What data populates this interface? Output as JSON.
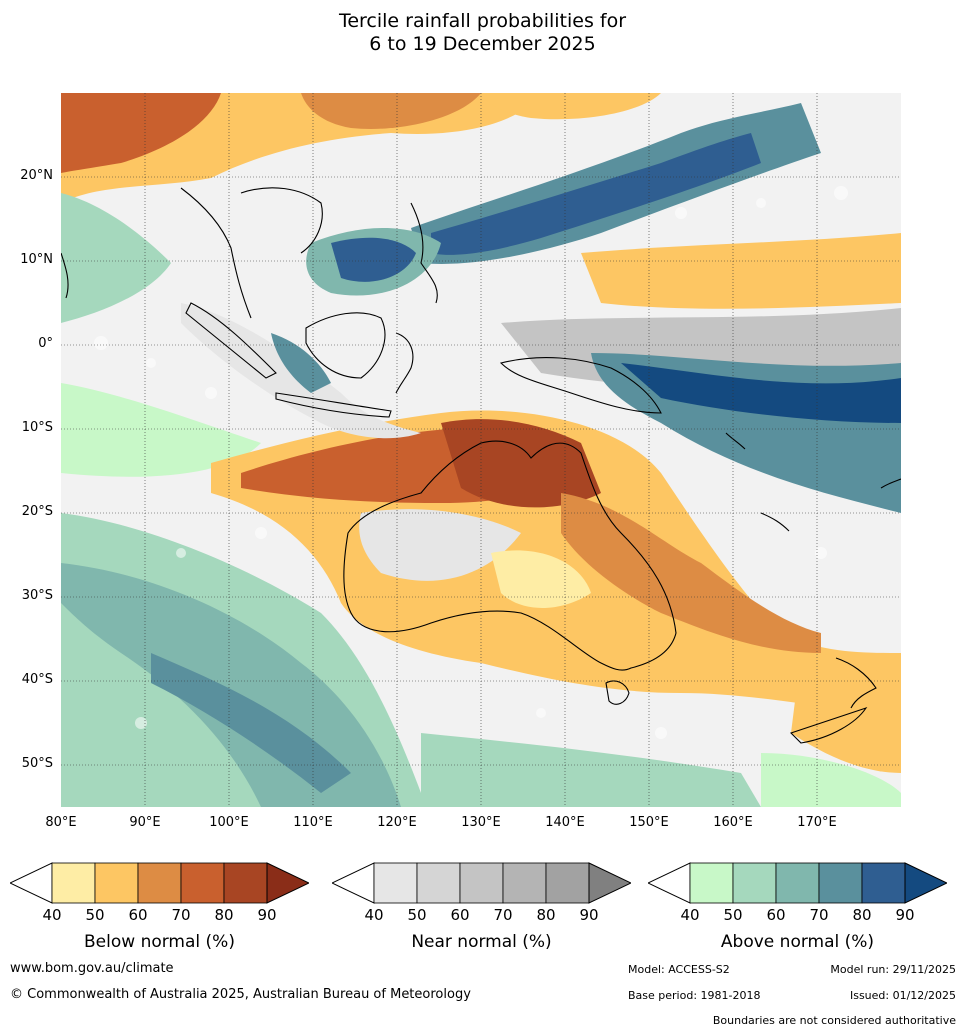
{
  "title": {
    "line1": "Tercile rainfall probabilities for",
    "line2": "6 to 19 December 2025"
  },
  "map": {
    "region": "Indian Ocean, Maritime Continent, Australia and Western Pacific",
    "lat_labels": [
      "20°N",
      "10°N",
      "0°",
      "10°S",
      "20°S",
      "30°S",
      "40°S",
      "50°S"
    ],
    "lon_labels": [
      "80°E",
      "90°E",
      "100°E",
      "110°E",
      "120°E",
      "130°E",
      "140°E",
      "150°E",
      "160°E",
      "170°E"
    ],
    "lat_range": [
      -55,
      30
    ],
    "lon_range": [
      80,
      180
    ],
    "grid": true
  },
  "legends": [
    {
      "title": "Below normal (%)",
      "ticks": [
        "40",
        "50",
        "60",
        "70",
        "80",
        "90"
      ],
      "colors": [
        "#ffffff",
        "#feeda5",
        "#fdc663",
        "#dd8c44",
        "#c9602e",
        "#a84523",
        "#8a2d18"
      ]
    },
    {
      "title": "Near normal (%)",
      "ticks": [
        "40",
        "50",
        "60",
        "70",
        "80",
        "90"
      ],
      "colors": [
        "#ffffff",
        "#e6e6e6",
        "#d5d5d5",
        "#c4c4c4",
        "#b4b4b4",
        "#a2a2a2",
        "#808080"
      ]
    },
    {
      "title": "Above normal (%)",
      "ticks": [
        "40",
        "50",
        "60",
        "70",
        "80",
        "90"
      ],
      "colors": [
        "#ffffff",
        "#c8f8c8",
        "#a5d8bd",
        "#80b7ad",
        "#5a909d",
        "#2f5e91",
        "#144a80"
      ]
    }
  ],
  "footer": {
    "website": "www.bom.gov.au/climate",
    "copyright": "© Commonwealth of Australia 2025, Australian Bureau of Meteorology",
    "model": "Model: ACCESS-S2",
    "model_run": "Model run: 29/11/2025",
    "base_period": "Base period: 1981-2018",
    "issued": "Issued: 01/12/2025",
    "disclaimer": "Boundaries are not considered authoritative"
  }
}
